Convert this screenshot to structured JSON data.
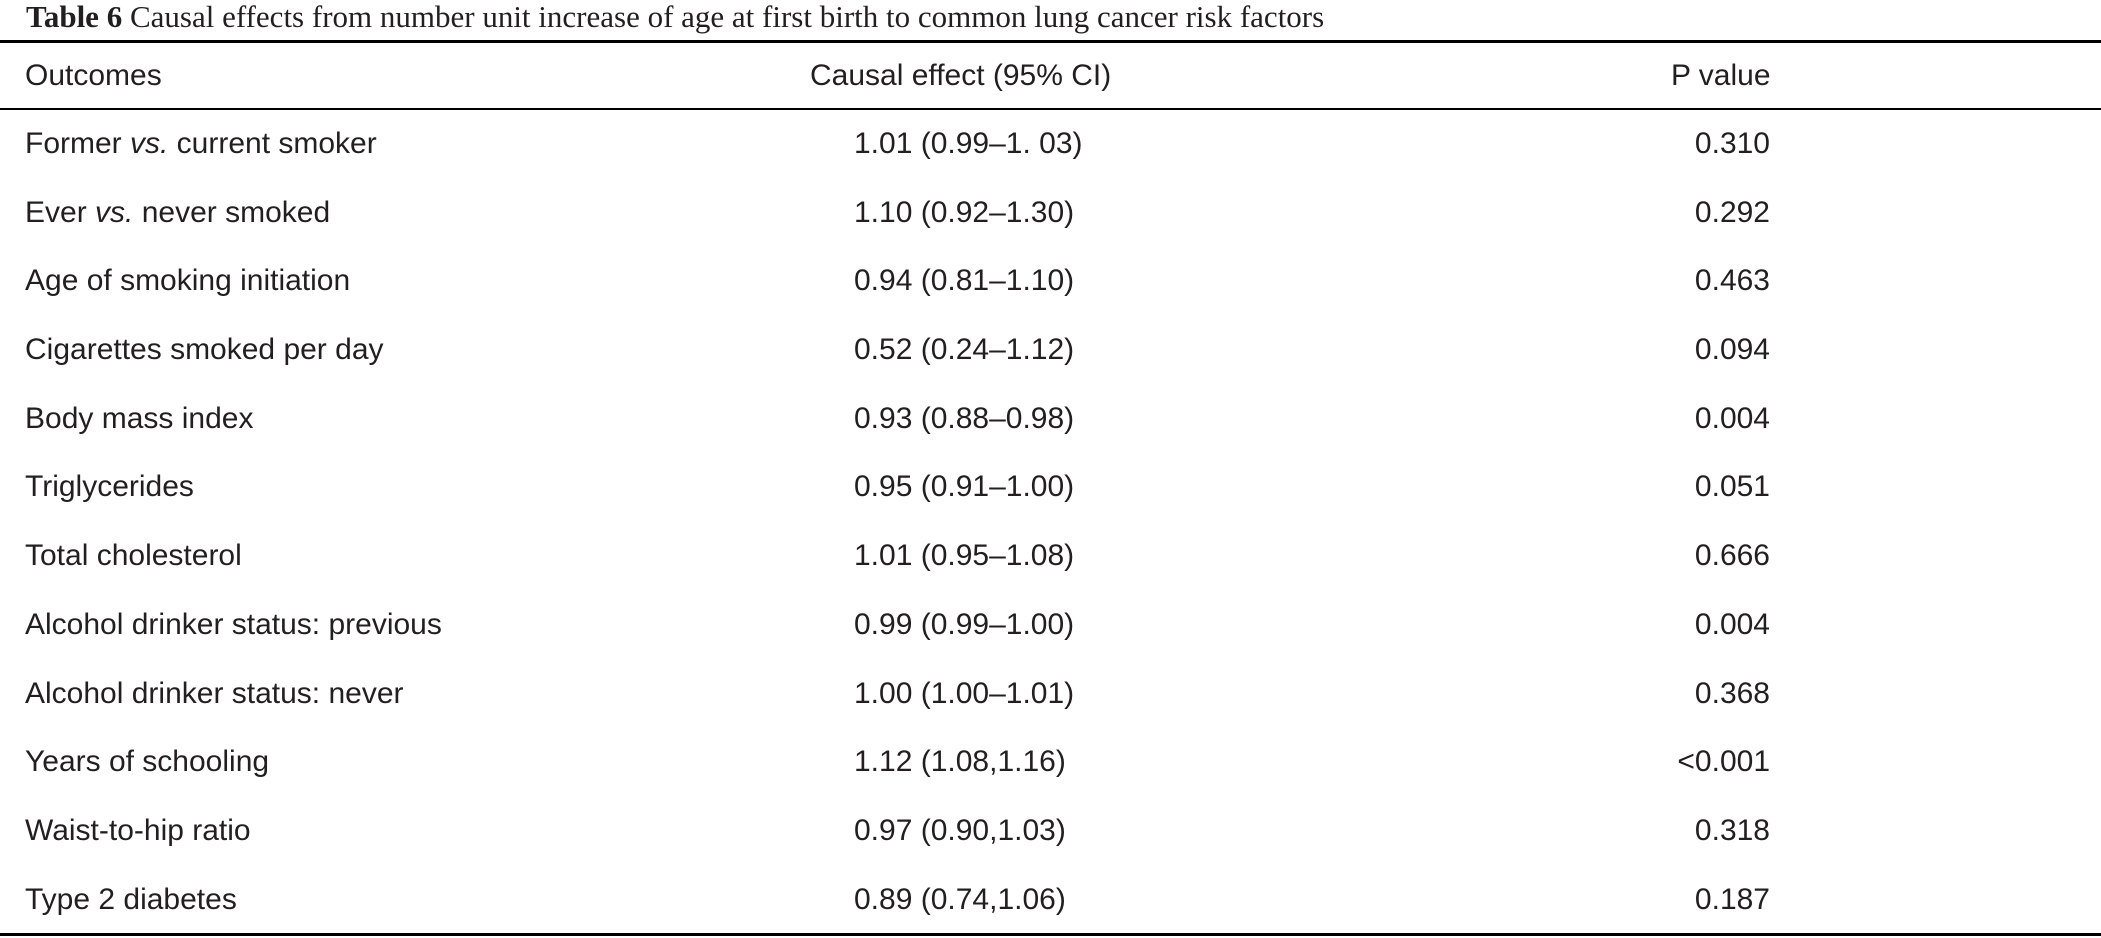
{
  "caption": {
    "label": "Table 6",
    "text": "Causal effects from number unit increase of age at first birth to common lung cancer risk factors"
  },
  "headers": {
    "outcome": "Outcomes",
    "effect": "Causal effect (95% CI)",
    "p": "P value"
  },
  "rows": [
    {
      "outcome_pre": "Former ",
      "outcome_em": "vs.",
      "outcome_post": " current smoker",
      "effect": "1.01 (0.99–1. 03)",
      "p": "0.310"
    },
    {
      "outcome_pre": "Ever ",
      "outcome_em": "vs.",
      "outcome_post": " never smoked",
      "effect": "1.10 (0.92–1.30)",
      "p": "0.292"
    },
    {
      "outcome_pre": "Age of smoking initiation",
      "outcome_em": "",
      "outcome_post": "",
      "effect": "0.94 (0.81–1.10)",
      "p": "0.463"
    },
    {
      "outcome_pre": "Cigarettes smoked per day",
      "outcome_em": "",
      "outcome_post": "",
      "effect": "0.52 (0.24–1.12)",
      "p": "0.094"
    },
    {
      "outcome_pre": "Body mass index",
      "outcome_em": "",
      "outcome_post": "",
      "effect": "0.93 (0.88–0.98)",
      "p": "0.004"
    },
    {
      "outcome_pre": "Triglycerides",
      "outcome_em": "",
      "outcome_post": "",
      "effect": "0.95 (0.91–1.00)",
      "p": "0.051"
    },
    {
      "outcome_pre": "Total cholesterol",
      "outcome_em": "",
      "outcome_post": "",
      "effect": "1.01 (0.95–1.08)",
      "p": "0.666"
    },
    {
      "outcome_pre": "Alcohol drinker status: previous",
      "outcome_em": "",
      "outcome_post": "",
      "effect": "0.99 (0.99–1.00)",
      "p": "0.004"
    },
    {
      "outcome_pre": "Alcohol drinker status: never",
      "outcome_em": "",
      "outcome_post": "",
      "effect": "1.00 (1.00–1.01)",
      "p": "0.368"
    },
    {
      "outcome_pre": "Years of schooling",
      "outcome_em": "",
      "outcome_post": "",
      "effect": "1.12 (1.08,1.16)",
      "p": "<0.001"
    },
    {
      "outcome_pre": "Waist-to-hip ratio",
      "outcome_em": "",
      "outcome_post": "",
      "effect": "0.97 (0.90,1.03)",
      "p": "0.318"
    },
    {
      "outcome_pre": "Type 2 diabetes",
      "outcome_em": "",
      "outcome_post": "",
      "effect": "0.89 (0.74,1.06)",
      "p": "0.187"
    }
  ]
}
